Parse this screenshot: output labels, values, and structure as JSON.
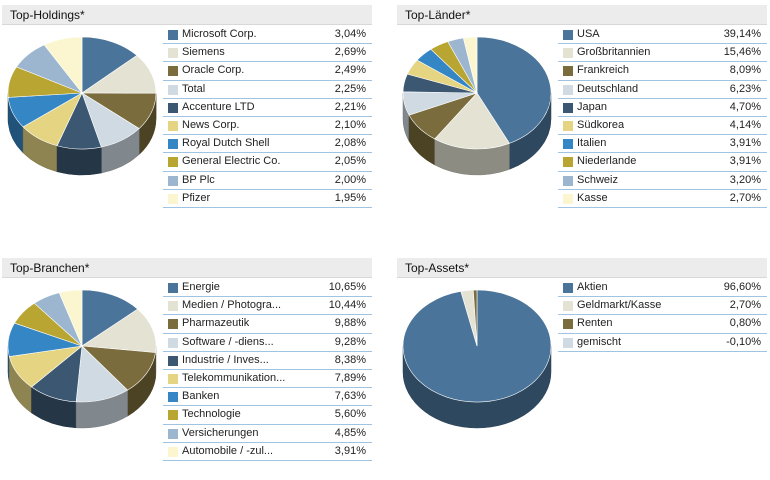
{
  "chart_data": [
    {
      "type": "pie",
      "title": "Top-Holdings*",
      "categories": [
        "Microsoft Corp.",
        "Siemens",
        "Oracle Corp.",
        "Total",
        "Accenture LTD",
        "News Corp.",
        "Royal Dutch Shell",
        "General Electric Co.",
        "BP Plc",
        "Pfizer"
      ],
      "labels": [
        "3,04%",
        "2,69%",
        "2,49%",
        "2,25%",
        "2,21%",
        "2,10%",
        "2,08%",
        "2,05%",
        "2,00%",
        "1,95%"
      ],
      "values": [
        3.04,
        2.69,
        2.49,
        2.25,
        2.21,
        2.1,
        2.08,
        2.05,
        2.0,
        1.95
      ],
      "colors": [
        "#4a7499",
        "#e4e2d3",
        "#7a6c3c",
        "#cfdae3",
        "#3b5772",
        "#e5d582",
        "#3586c4",
        "#b9a532",
        "#9cb6d0",
        "#fbf6cf"
      ]
    },
    {
      "type": "pie",
      "title": "Top-Länder*",
      "categories": [
        "USA",
        "Großbritannien",
        "Frankreich",
        "Deutschland",
        "Japan",
        "Südkorea",
        "Italien",
        "Niederlande",
        "Schweiz",
        "Kasse"
      ],
      "labels": [
        "39,14%",
        "15,46%",
        "8,09%",
        "6,23%",
        "4,70%",
        "4,14%",
        "3,91%",
        "3,91%",
        "3,20%",
        "2,70%"
      ],
      "values": [
        39.14,
        15.46,
        8.09,
        6.23,
        4.7,
        4.14,
        3.91,
        3.91,
        3.2,
        2.7
      ],
      "colors": [
        "#4a7499",
        "#e4e2d3",
        "#7a6c3c",
        "#cfdae3",
        "#3b5772",
        "#e5d582",
        "#3586c4",
        "#b9a532",
        "#9cb6d0",
        "#fbf6cf"
      ]
    },
    {
      "type": "pie",
      "title": "Top-Branchen*",
      "categories": [
        "Energie",
        "Medien / Photogra...",
        "Pharmazeutik",
        "Software / -diens...",
        "Industrie / Inves...",
        "Telekommunikation...",
        "Banken",
        "Technologie",
        "Versicherungen",
        "Automobile / -zul..."
      ],
      "labels": [
        "10,65%",
        "10,44%",
        "9,88%",
        "9,28%",
        "8,38%",
        "7,89%",
        "7,63%",
        "5,60%",
        "4,85%",
        "3,91%"
      ],
      "values": [
        10.65,
        10.44,
        9.88,
        9.28,
        8.38,
        7.89,
        7.63,
        5.6,
        4.85,
        3.91
      ],
      "colors": [
        "#4a7499",
        "#e4e2d3",
        "#7a6c3c",
        "#cfdae3",
        "#3b5772",
        "#e5d582",
        "#3586c4",
        "#b9a532",
        "#9cb6d0",
        "#fbf6cf"
      ]
    },
    {
      "type": "pie",
      "title": "Top-Assets*",
      "categories": [
        "Aktien",
        "Geldmarkt/Kasse",
        "Renten",
        "gemischt"
      ],
      "labels": [
        "96,60%",
        "2,70%",
        "0,80%",
        "-0,10%"
      ],
      "values": [
        96.6,
        2.7,
        0.8,
        -0.1
      ],
      "colors": [
        "#4a7499",
        "#e4e2d3",
        "#7a6c3c",
        "#cfdae3"
      ]
    }
  ]
}
